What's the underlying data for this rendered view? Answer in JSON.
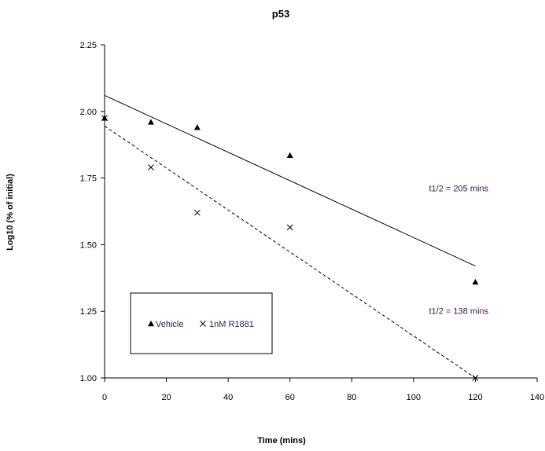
{
  "chart_data": {
    "type": "scatter",
    "title": "p53",
    "xlabel": "Time (mins)",
    "ylabel": "Log10 (% of initial)",
    "xlim": [
      0,
      140
    ],
    "ylim": [
      1.0,
      2.25
    ],
    "xticks": [
      "0",
      "20",
      "40",
      "60",
      "80",
      "100",
      "120",
      "140"
    ],
    "yticks": [
      "1.00",
      "1.25",
      "1.50",
      "1.75",
      "2.00",
      "2.25"
    ],
    "grid": false,
    "legend_position": "lower-left",
    "series": [
      {
        "name": "Vehicle",
        "marker": "triangle",
        "color": "#000000",
        "x": [
          0,
          15,
          30,
          60,
          120
        ],
        "y": [
          1.975,
          1.96,
          1.94,
          1.835,
          1.36
        ],
        "trendline": {
          "style": "solid",
          "x": [
            0,
            120
          ],
          "y": [
            2.06,
            1.42
          ]
        }
      },
      {
        "name": "1nM R1881",
        "marker": "x",
        "color": "#000000",
        "x": [
          0,
          15,
          30,
          60,
          120
        ],
        "y": [
          1.975,
          1.79,
          1.62,
          1.565,
          1.0
        ],
        "trendline": {
          "style": "dashed",
          "x": [
            0,
            120
          ],
          "y": [
            1.945,
            1.0
          ]
        }
      }
    ],
    "annotations": [
      {
        "text": "t1/2 = 205 mins",
        "x": 105,
        "y": 1.7
      },
      {
        "text": "t1/2 = 138 mins",
        "x": 105,
        "y": 1.24
      }
    ]
  }
}
